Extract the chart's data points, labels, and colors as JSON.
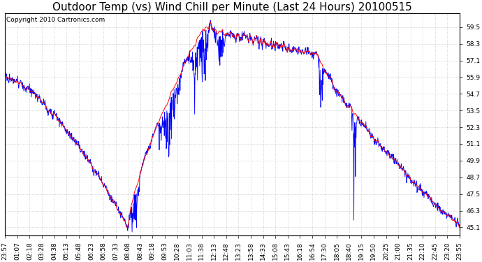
{
  "title": "Outdoor Temp (vs) Wind Chill per Minute (Last 24 Hours) 20100515",
  "copyright": "Copyright 2010 Cartronics.com",
  "yticks": [
    45.1,
    46.3,
    47.5,
    48.7,
    49.9,
    51.1,
    52.3,
    53.5,
    54.7,
    55.9,
    57.1,
    58.3,
    59.5
  ],
  "ymin": 44.5,
  "ymax": 60.5,
  "xtick_labels": [
    "23:57",
    "01:07",
    "02:18",
    "03:28",
    "04:38",
    "05:13",
    "05:48",
    "06:23",
    "06:58",
    "07:33",
    "08:08",
    "08:43",
    "09:18",
    "09:53",
    "10:28",
    "11:03",
    "11:38",
    "12:13",
    "12:48",
    "13:23",
    "13:58",
    "14:33",
    "15:08",
    "15:43",
    "16:18",
    "16:54",
    "17:30",
    "18:05",
    "18:40",
    "19:15",
    "19:50",
    "20:25",
    "21:00",
    "21:35",
    "22:10",
    "22:45",
    "23:20",
    "23:55"
  ],
  "background_color": "#ffffff",
  "plot_bg_color": "#ffffff",
  "grid_color": "#bbbbbb",
  "line_color_red": "#ff0000",
  "line_color_blue": "#0000ff",
  "title_fontsize": 11,
  "tick_fontsize": 6.5,
  "copyright_fontsize": 6.5
}
